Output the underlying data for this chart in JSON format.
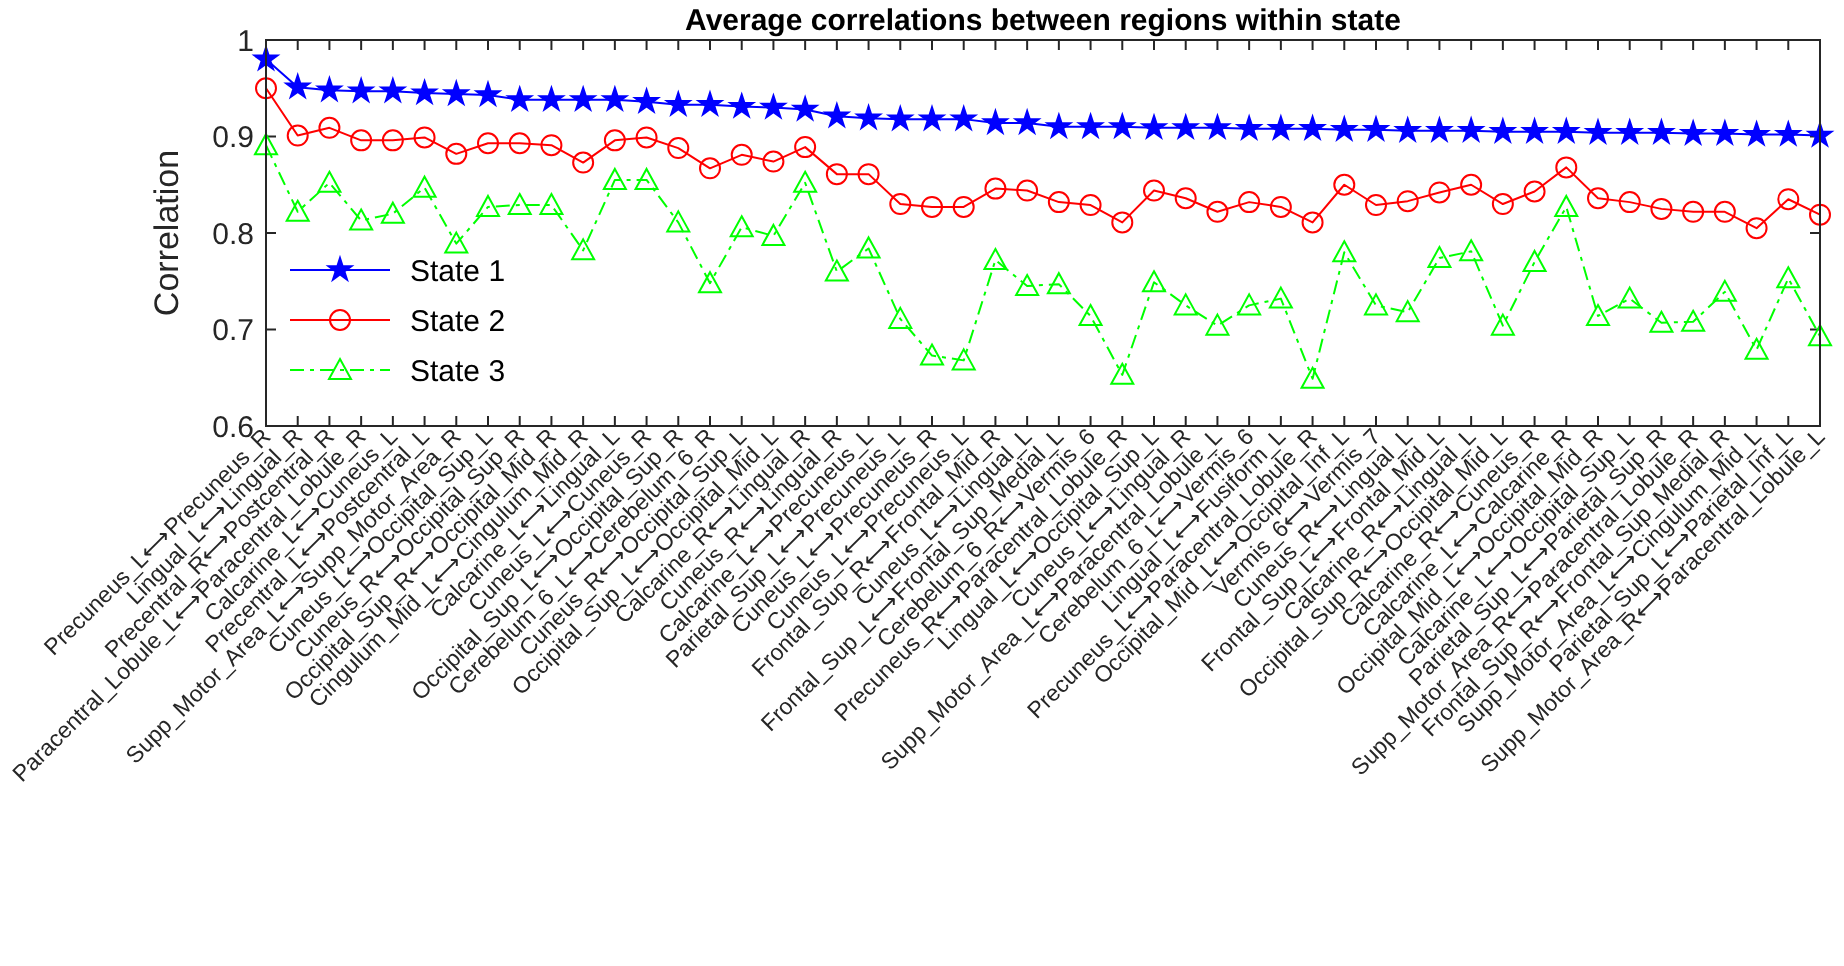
{
  "chart_data": {
    "type": "line",
    "title": "Average correlations between regions within state",
    "ylabel": "Correlation",
    "categories": [
      "Precuneus_L⟷Precuneus_R",
      "Lingual_L⟷Lingual_R",
      "Precentral_R⟷Postcentral_R",
      "Paracentral_Lobule_L⟷Paracentral_Lobule_R",
      "Calcarine_L⟷Cuneus_L",
      "Precentral_L⟷Postcentral_L",
      "Supp_Motor_Area_L⟷Supp_Motor_Area_R",
      "Cuneus_L⟷Occipital_Sup_L",
      "Cuneus_R⟷Occipital_Sup_R",
      "Occipital_Sup_R⟷Occipital_Mid_R",
      "Cingulum_Mid_L⟷Cingulum_Mid_R",
      "Calcarine_L⟷Lingual_L",
      "Cuneus_L⟷Cuneus_R",
      "Occipital_Sup_L⟷Occipital_Sup_R",
      "Cerebelum_6_L⟷Cerebelum_6_R",
      "Cuneus_R⟷Occipital_Sup_L",
      "Occipital_Sup_L⟷Occipital_Mid_L",
      "Calcarine_R⟷Lingual_R",
      "Cuneus_R⟷Lingual_R",
      "Calcarine_L⟷Precuneus_L",
      "Parietal_Sup_L⟷Precuneus_L",
      "Cuneus_L⟷Precuneus_R",
      "Cuneus_L⟷Precuneus_L",
      "Frontal_Sup_R⟷Frontal_Mid_R",
      "Cuneus_L⟷Lingual_L",
      "Frontal_Sup_L⟷Frontal_Sup_Medial_L",
      "Cerebelum_6_R⟷Vermis_6",
      "Precuneus_R⟷Paracentral_Lobule_R",
      "Lingual_L⟷Occipital_Sup_L",
      "Cuneus_L⟷Lingual_R",
      "Supp_Motor_Area_L⟷Paracentral_Lobule_L",
      "Cerebelum_6_L⟷Vermis_6",
      "Lingual_L⟷Fusiform_L",
      "Precuneus_L⟷Paracentral_Lobule_R",
      "Occipital_Mid_L⟷Occipital_Inf_L",
      "Vermis_6⟷Vermis_7",
      "Cuneus_R⟷Lingual_L",
      "Frontal_Sup_L⟷Frontal_Mid_L",
      "Calcarine_R⟷Lingual_L",
      "Occipital_Sup_R⟷Occipital_Mid_L",
      "Calcarine_R⟷Cuneus_R",
      "Calcarine_L⟷Calcarine_R",
      "Occipital_Mid_L⟷Occipital_Mid_R",
      "Calcarine_L⟷Occipital_Sup_L",
      "Parietal_Sup_L⟷Parietal_Sup_R",
      "Supp_Motor_Area_R⟷Paracentral_Lobule_R",
      "Frontal_Sup_R⟷Frontal_Sup_Medial_R",
      "Supp_Motor_Area_L⟷Cingulum_Mid_L",
      "Parietal_Sup_L⟷Parietal_Inf_L",
      "Supp_Motor_Area_R⟷Paracentral_Lobule_L"
    ],
    "series": [
      {
        "name": "State 1",
        "color": "#0000ff",
        "marker": "star",
        "line_style": "solid",
        "values": [
          0.98,
          0.951,
          0.948,
          0.947,
          0.947,
          0.945,
          0.944,
          0.943,
          0.938,
          0.938,
          0.938,
          0.938,
          0.936,
          0.933,
          0.933,
          0.931,
          0.93,
          0.928,
          0.921,
          0.919,
          0.918,
          0.918,
          0.918,
          0.914,
          0.914,
          0.91,
          0.91,
          0.91,
          0.909,
          0.909,
          0.909,
          0.908,
          0.908,
          0.908,
          0.907,
          0.907,
          0.906,
          0.906,
          0.906,
          0.905,
          0.905,
          0.905,
          0.904,
          0.904,
          0.904,
          0.903,
          0.903,
          0.902,
          0.902,
          0.901
        ]
      },
      {
        "name": "State 2",
        "color": "#ff0000",
        "marker": "circle",
        "line_style": "solid",
        "values": [
          0.95,
          0.901,
          0.909,
          0.896,
          0.896,
          0.899,
          0.882,
          0.893,
          0.893,
          0.891,
          0.873,
          0.896,
          0.899,
          0.888,
          0.867,
          0.881,
          0.874,
          0.889,
          0.861,
          0.861,
          0.83,
          0.827,
          0.827,
          0.846,
          0.844,
          0.832,
          0.829,
          0.811,
          0.844,
          0.836,
          0.822,
          0.832,
          0.827,
          0.811,
          0.85,
          0.829,
          0.833,
          0.842,
          0.85,
          0.83,
          0.843,
          0.868,
          0.836,
          0.832,
          0.825,
          0.822,
          0.822,
          0.805,
          0.835,
          0.819
        ]
      },
      {
        "name": "State 3",
        "color": "#00ff00",
        "marker": "triangle",
        "line_style": "dashed",
        "values": [
          0.891,
          0.822,
          0.852,
          0.813,
          0.82,
          0.847,
          0.789,
          0.827,
          0.829,
          0.829,
          0.782,
          0.855,
          0.855,
          0.811,
          0.748,
          0.806,
          0.797,
          0.852,
          0.76,
          0.784,
          0.711,
          0.673,
          0.668,
          0.772,
          0.745,
          0.747,
          0.714,
          0.653,
          0.749,
          0.725,
          0.704,
          0.725,
          0.732,
          0.649,
          0.78,
          0.725,
          0.718,
          0.774,
          0.781,
          0.704,
          0.77,
          0.827,
          0.714,
          0.732,
          0.707,
          0.708,
          0.739,
          0.679,
          0.753,
          0.693
        ]
      }
    ],
    "ylim": [
      0.6,
      1
    ],
    "yticks": [
      0.6,
      0.7,
      0.8,
      0.9,
      1
    ],
    "grid": false,
    "legend": "bottom left"
  }
}
